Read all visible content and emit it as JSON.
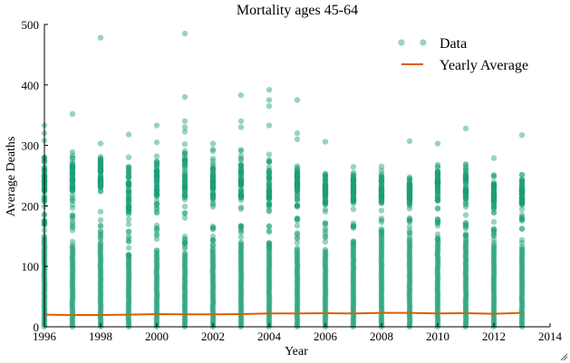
{
  "chart_data": {
    "type": "scatter",
    "title": "Mortality ages 45-64",
    "xlabel": "Year",
    "ylabel": "Average Deaths",
    "xlim": [
      1996,
      2014
    ],
    "ylim": [
      0,
      500
    ],
    "xticks": [
      "1996",
      "1998",
      "2000",
      "2002",
      "2004",
      "2006",
      "2008",
      "2010",
      "2012",
      "2014"
    ],
    "yticks": [
      "0",
      "100",
      "200",
      "300",
      "400",
      "500"
    ],
    "grid": false,
    "legend_position": "top-right",
    "series": [
      {
        "name": "Data",
        "kind": "scatter",
        "color": "#1b9e77",
        "years": [
          1996,
          1997,
          1998,
          1999,
          2000,
          2001,
          2002,
          2003,
          2004,
          2005,
          2006,
          2007,
          2008,
          2009,
          2010,
          2011,
          2012,
          2013
        ],
        "dense_max": [
          150,
          135,
          140,
          118,
          120,
          120,
          130,
          135,
          130,
          130,
          125,
          135,
          148,
          145,
          145,
          145,
          135,
          133
        ],
        "upper_cluster": [
          [
            190,
            290
          ],
          [
            190,
            300
          ],
          [
            200,
            300
          ],
          [
            160,
            295
          ],
          [
            170,
            300
          ],
          [
            150,
            340
          ],
          [
            180,
            300
          ],
          [
            170,
            305
          ],
          [
            170,
            300
          ],
          [
            180,
            300
          ],
          [
            175,
            270
          ],
          [
            185,
            268
          ],
          [
            185,
            272
          ],
          [
            185,
            265
          ],
          [
            180,
            285
          ],
          [
            175,
            290
          ],
          [
            175,
            265
          ],
          [
            185,
            265
          ]
        ],
        "outliers": [
          [
            1997,
            352
          ],
          [
            1998,
            478
          ],
          [
            1998,
            303
          ],
          [
            1999,
            318
          ],
          [
            2000,
            333
          ],
          [
            2000,
            305
          ],
          [
            2001,
            485
          ],
          [
            2001,
            380
          ],
          [
            2001,
            340
          ],
          [
            2001,
            330
          ],
          [
            2002,
            303
          ],
          [
            2003,
            383
          ],
          [
            2003,
            340
          ],
          [
            2003,
            330
          ],
          [
            2004,
            392
          ],
          [
            2004,
            375
          ],
          [
            2004,
            365
          ],
          [
            2004,
            333
          ],
          [
            2005,
            375
          ],
          [
            2005,
            320
          ],
          [
            2005,
            310
          ],
          [
            2006,
            306
          ],
          [
            2009,
            307
          ],
          [
            2010,
            303
          ],
          [
            2011,
            328
          ],
          [
            2012,
            279
          ],
          [
            2013,
            317
          ],
          [
            1996,
            333
          ],
          [
            1996,
            320
          ],
          [
            1996,
            308
          ]
        ]
      },
      {
        "name": "Yearly Average",
        "kind": "line",
        "color": "#d95f02",
        "x": [
          1996,
          1997,
          1998,
          1999,
          2000,
          2001,
          2002,
          2003,
          2004,
          2005,
          2006,
          2007,
          2008,
          2009,
          2010,
          2011,
          2012,
          2013
        ],
        "y": [
          20,
          19.5,
          19.5,
          20,
          21,
          20.5,
          20.5,
          21,
          22,
          22,
          22.5,
          22,
          23,
          23,
          22,
          22.5,
          21.5,
          23
        ]
      }
    ]
  }
}
